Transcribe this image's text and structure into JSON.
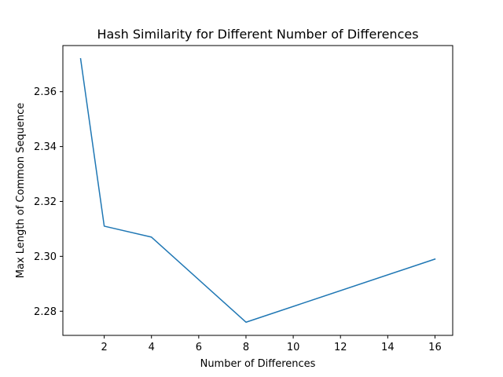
{
  "chart_data": {
    "type": "line",
    "title": "Hash Similarity for Different Number of Differences",
    "xlabel": "Number of Differences",
    "ylabel": "Max Length of Common Sequence",
    "x": [
      1,
      2,
      4,
      8,
      16
    ],
    "series": [
      {
        "values": [
          2.372,
          2.311,
          2.307,
          2.276,
          2.299
        ],
        "color": "#1f77b4"
      }
    ],
    "xticks": [
      2,
      4,
      6,
      8,
      10,
      12,
      14,
      16
    ],
    "yticks": [
      2.28,
      2.3,
      2.32,
      2.34,
      2.36
    ],
    "xlim": [
      0.25,
      16.75
    ],
    "ylim": [
      2.2712,
      2.3768
    ],
    "grid": false,
    "legend": "none"
  }
}
